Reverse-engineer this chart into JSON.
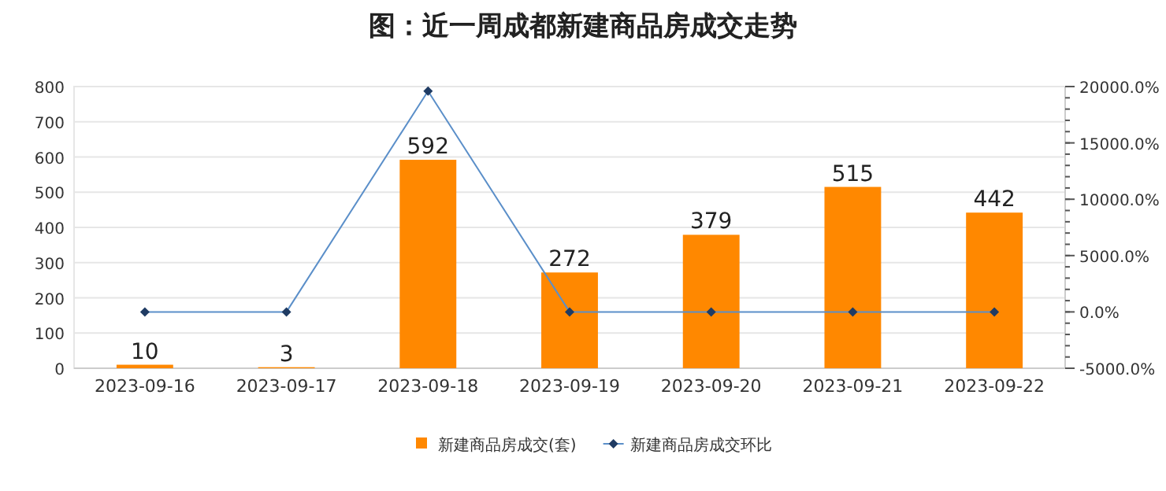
{
  "chart_data": {
    "type": "bar",
    "title": "图：近一周成都新建商品房成交走势",
    "categories": [
      "2023-09-16",
      "2023-09-17",
      "2023-09-18",
      "2023-09-19",
      "2023-09-20",
      "2023-09-21",
      "2023-09-22"
    ],
    "series": [
      {
        "name": "新建商品房成交(套)",
        "color": "#ff8800",
        "values": [
          10,
          3,
          592,
          272,
          379,
          515,
          442
        ],
        "value_labels": [
          "10",
          "3",
          "592",
          "272",
          "379",
          "515",
          "442"
        ]
      },
      {
        "name": "新建商品房成交环比",
        "type": "line",
        "axis": "y2",
        "color": "#5b8fc9",
        "marker": "diamond",
        "values": [
          0,
          0,
          19600,
          0,
          0,
          0,
          0
        ]
      }
    ],
    "ylim": [
      0,
      800
    ],
    "yticks": [
      0,
      100,
      200,
      300,
      400,
      500,
      600,
      700,
      800
    ],
    "y2lim": [
      -5000,
      20000
    ],
    "y2ticks": [
      {
        "value": -5000,
        "label": "-5000.0%"
      },
      {
        "value": 0,
        "label": "0.0%"
      },
      {
        "value": 5000,
        "label": "5000.0%"
      },
      {
        "value": 10000,
        "label": "10000.0%"
      },
      {
        "value": 15000,
        "label": "15000.0%"
      },
      {
        "value": 20000,
        "label": "20000.0%"
      }
    ],
    "grid": "y",
    "legend": "bottom"
  }
}
